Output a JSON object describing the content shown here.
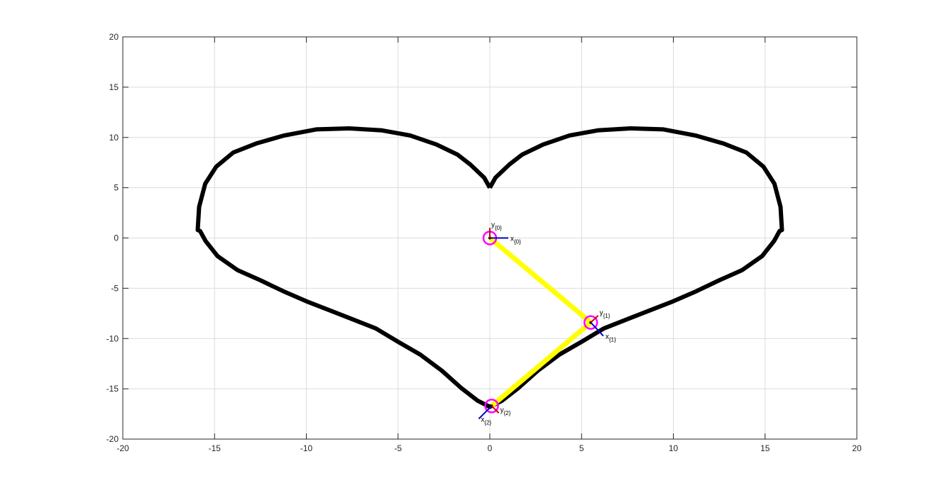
{
  "chart_data": {
    "type": "line",
    "title": "",
    "xlabel": "",
    "ylabel": "",
    "xlim": [
      -20,
      20
    ],
    "ylim": [
      -20,
      20
    ],
    "xticks": [
      -20,
      -15,
      -10,
      -5,
      0,
      5,
      10,
      15,
      20
    ],
    "yticks": [
      -20,
      -15,
      -10,
      -5,
      0,
      5,
      10,
      15,
      20
    ],
    "xtick_labels": [
      "-20",
      "-15",
      "-10",
      "-5",
      "0",
      "5",
      "10",
      "15",
      "20"
    ],
    "ytick_labels": [
      "-20",
      "-15",
      "-10",
      "-5",
      "0",
      "5",
      "10",
      "15",
      "20"
    ],
    "grid": true,
    "box": true,
    "series": [
      {
        "kind": "curve",
        "color": "#000000",
        "x": [
          0,
          0.31,
          1.06,
          1.77,
          2.91,
          4.35,
          5.88,
          7.66,
          9.46,
          11.19,
          12.73,
          13.98,
          14.91,
          15.51,
          15.84,
          15.92,
          15.79,
          15.49,
          14.84,
          13.74,
          12.51,
          11.25,
          9.99,
          8.72,
          7.46,
          6.21,
          5.02,
          3.79,
          2.61,
          1.57,
          0.65,
          0
        ],
        "y": [
          5.0,
          6.0,
          7.3,
          8.3,
          9.3,
          10.2,
          10.7,
          10.9,
          10.8,
          10.2,
          9.4,
          8.5,
          7.1,
          5.4,
          3.1,
          0.8,
          0.7,
          -0.3,
          -1.8,
          -3.2,
          -4.2,
          -5.3,
          -6.3,
          -7.2,
          -8.1,
          -9.0,
          -10.3,
          -11.6,
          -13.2,
          -14.9,
          -16.2,
          -16.8
        ],
        "symmetric_about_x0": true
      },
      {
        "kind": "links",
        "color": "#ffff00",
        "x": [
          0,
          5.5,
          0.1
        ],
        "y": [
          0,
          -8.4,
          -16.7
        ]
      }
    ],
    "joints": [
      {
        "x": 0,
        "y": 0,
        "ring_color": "#ff00ff"
      },
      {
        "x": 5.5,
        "y": -8.4,
        "ring_color": "#ff00ff"
      },
      {
        "x": 0.1,
        "y": -16.7,
        "ring_color": "#ff00ff"
      }
    ],
    "frames": [
      {
        "x": 0,
        "y": 0,
        "x_axis": "x",
        "y_axis": "y",
        "subscript": "{0}",
        "x_color": "#0000cc",
        "y_color": "#cc0000"
      },
      {
        "x": 5.5,
        "y": -8.4,
        "x_axis": "x",
        "y_axis": "y",
        "subscript": "{1}",
        "x_color": "#0000cc",
        "y_color": "#cc0000"
      },
      {
        "x": 0.1,
        "y": -16.7,
        "x_axis": "x",
        "y_axis": "y",
        "subscript": "{2}",
        "x_color": "#0000cc",
        "y_color": "#cc0000"
      }
    ]
  }
}
